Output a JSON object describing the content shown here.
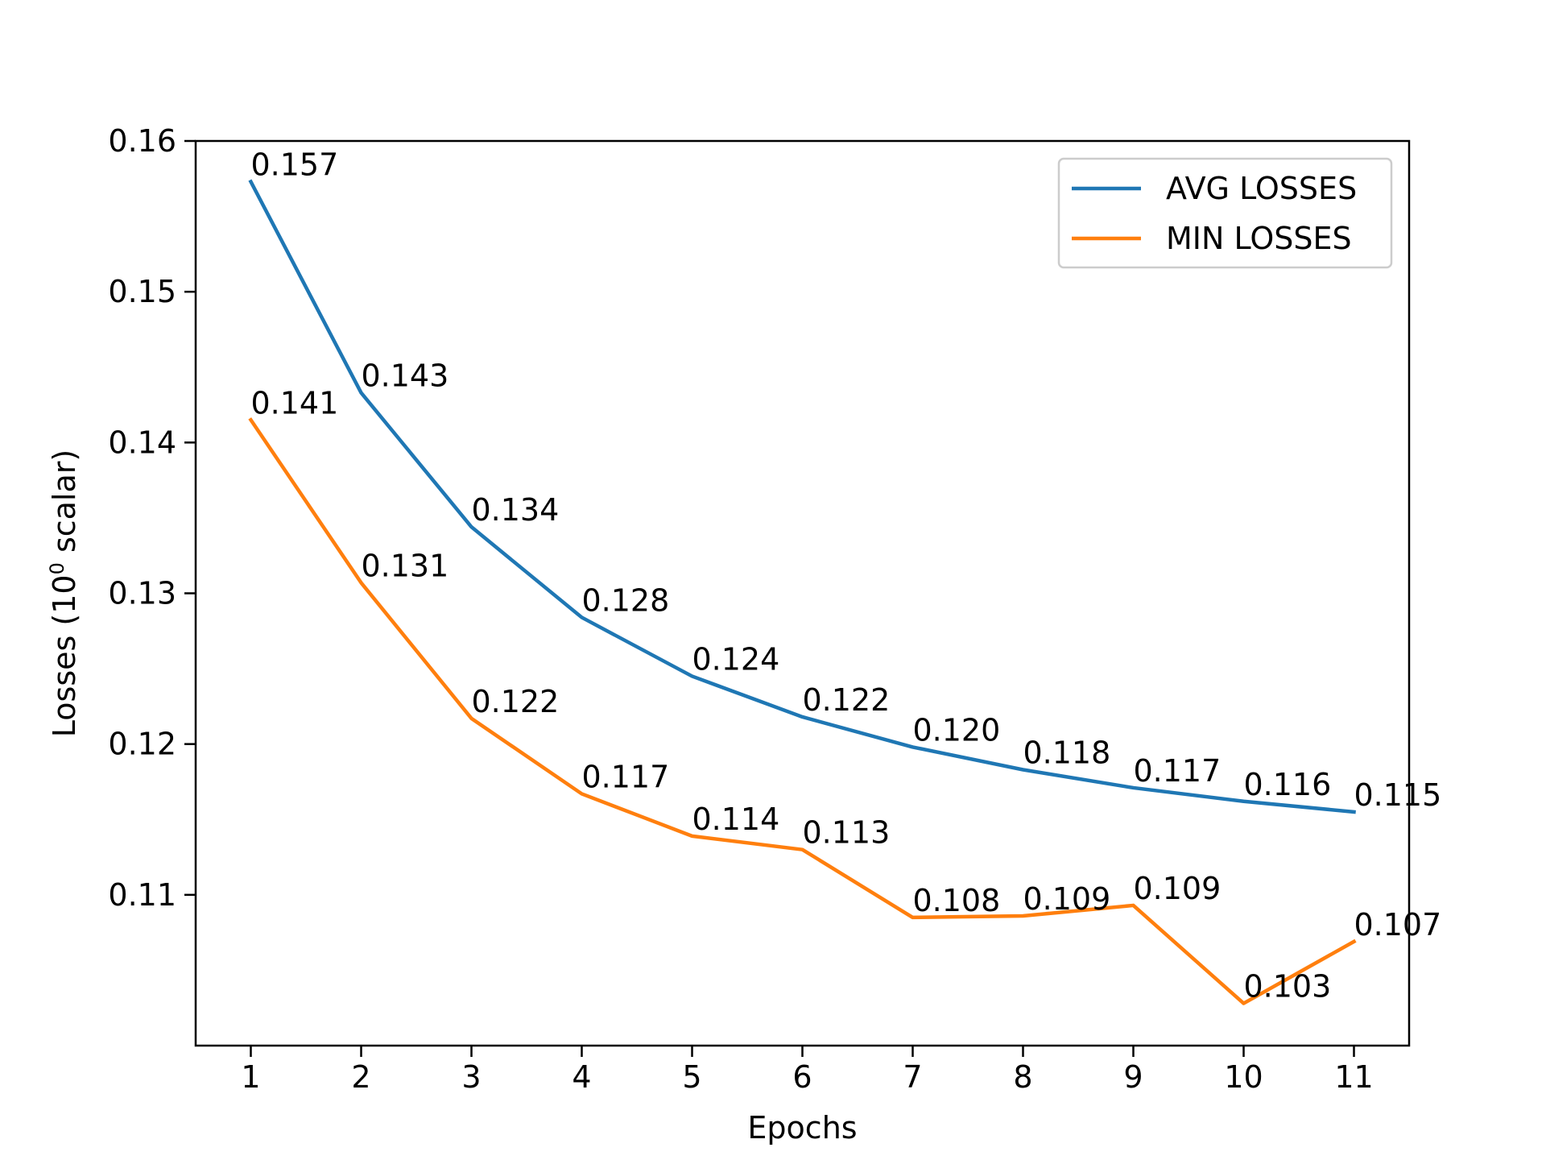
{
  "chart_data": {
    "type": "line",
    "title": "",
    "xlabel": "Epochs",
    "ylabel": {
      "prefix": "Losses (10",
      "superscript": "0",
      "suffix": " scalar)"
    },
    "x": [
      1,
      2,
      3,
      4,
      5,
      6,
      7,
      8,
      9,
      10,
      11
    ],
    "xlim": [
      0.5,
      11.5
    ],
    "ylim": [
      0.1,
      0.16
    ],
    "yticks": [
      0.11,
      0.12,
      0.13,
      0.14,
      0.15,
      0.16
    ],
    "ytick_labels": [
      "0.11",
      "0.12",
      "0.13",
      "0.14",
      "0.15",
      "0.16"
    ],
    "xtick_labels": [
      "1",
      "2",
      "3",
      "4",
      "5",
      "6",
      "7",
      "8",
      "9",
      "10",
      "11"
    ],
    "grid": false,
    "legend_position": "top-right",
    "series": [
      {
        "name": "AVG LOSSES",
        "color": "#1f77b4",
        "values": [
          0.1573,
          0.1433,
          0.1344,
          0.1284,
          0.1245,
          0.1218,
          0.1198,
          0.1183,
          0.1171,
          0.1162,
          0.1155
        ],
        "labels": [
          "0.157",
          "0.143",
          "0.134",
          "0.128",
          "0.124",
          "0.122",
          "0.120",
          "0.118",
          "0.117",
          "0.116",
          "0.115"
        ]
      },
      {
        "name": "MIN LOSSES",
        "color": "#ff7f0e",
        "values": [
          0.1415,
          0.1307,
          0.1217,
          0.1167,
          0.1139,
          0.113,
          0.1085,
          0.1086,
          0.1093,
          0.1028,
          0.1069
        ],
        "labels": [
          "0.141",
          "0.131",
          "0.122",
          "0.117",
          "0.114",
          "0.113",
          "0.108",
          "0.109",
          "0.109",
          "0.103",
          "0.107"
        ]
      }
    ]
  }
}
